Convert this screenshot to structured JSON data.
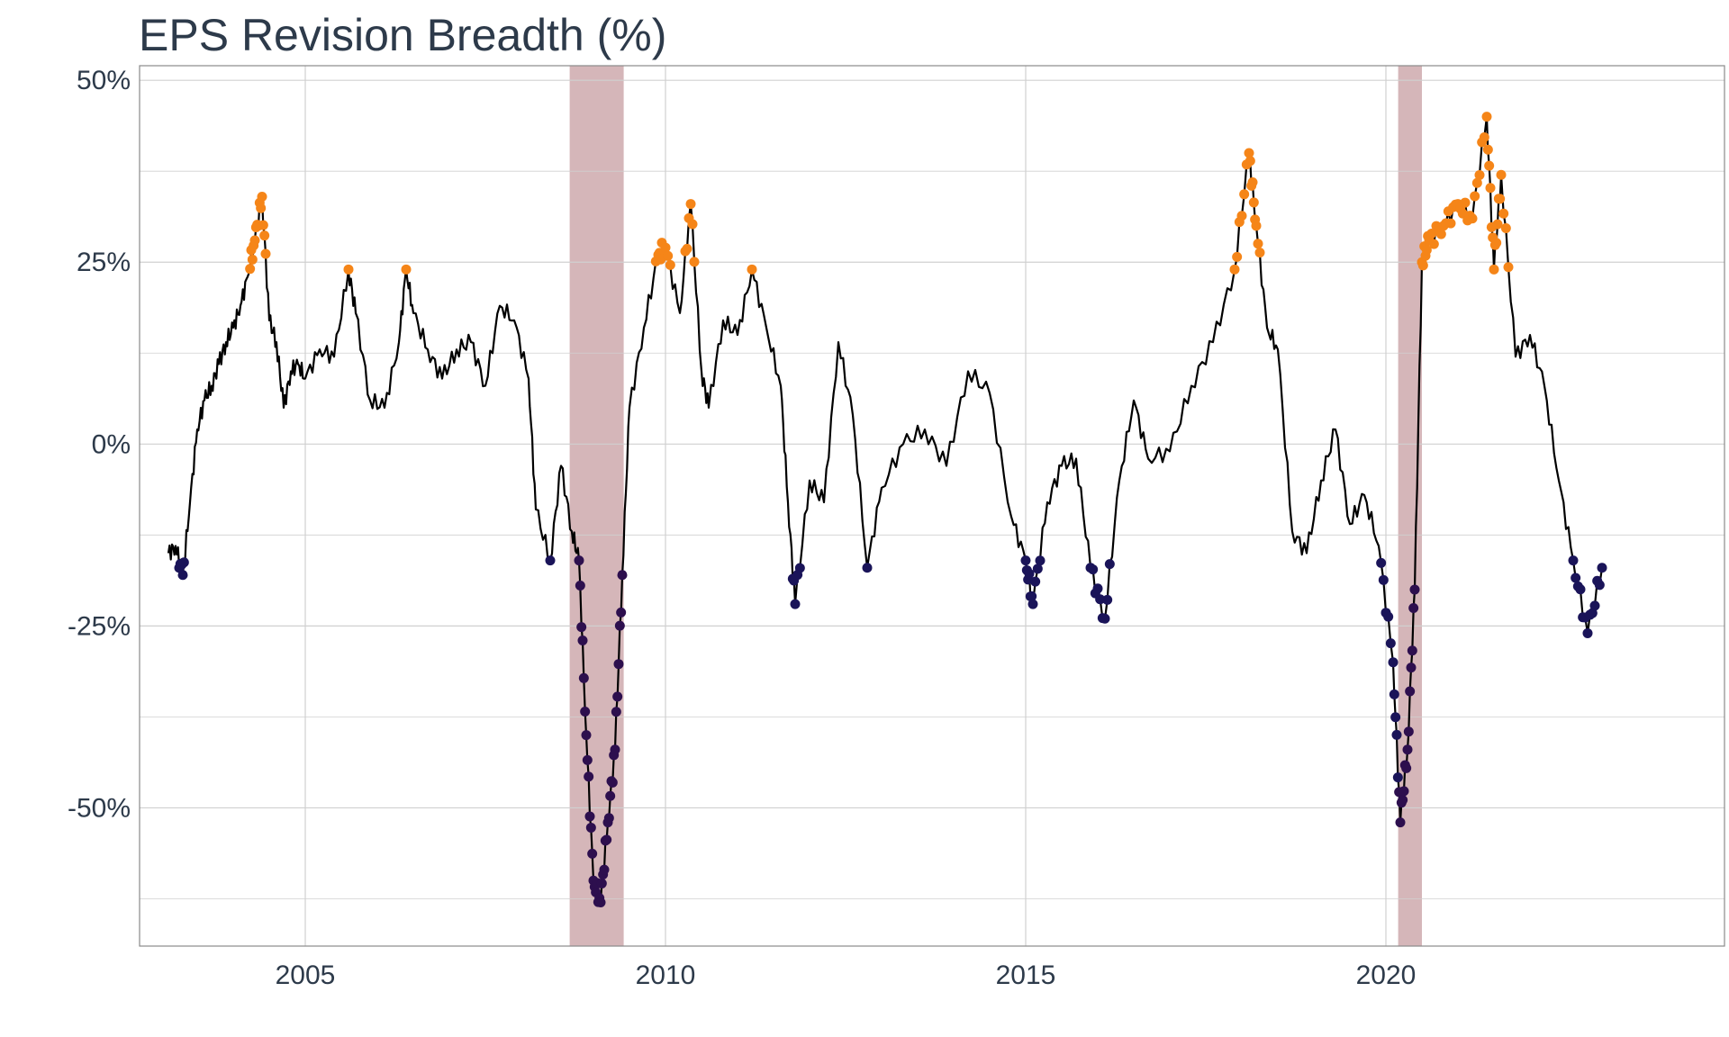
{
  "chart_data": {
    "type": "line",
    "title": "EPS Revision Breadth (%)",
    "xlabel": "",
    "ylabel": "",
    "xlim": [
      2002.7,
      2024.7
    ],
    "ylim": [
      -69,
      52
    ],
    "x_ticks": [
      2005,
      2010,
      2015,
      2020
    ],
    "x_tick_labels": [
      "2005",
      "2010",
      "2015",
      "2020"
    ],
    "y_ticks": [
      50,
      25,
      0,
      -25,
      -50
    ],
    "y_tick_labels": [
      "50%",
      "25%",
      "0%",
      "-25%",
      "-50%"
    ],
    "y_minor_gridlines": [
      37.5,
      12.5,
      -12.5,
      -37.5,
      -62.5
    ],
    "grid": true,
    "recession_shading": [
      {
        "start": 2008.67,
        "end": 2009.42
      },
      {
        "start": 2020.17,
        "end": 2020.5
      }
    ],
    "thresholds": {
      "high": 24,
      "low": -16
    },
    "colors": {
      "line": "#000000",
      "high_points": "#f58518",
      "low_points": "#1a1459",
      "recession_low_points": "#2d0f4e",
      "recession_band": "#b27a80",
      "grid": "#d0d0d0",
      "panel_border": "#8a8a8a"
    },
    "series": [
      {
        "x": [
          2003.1,
          2003.2,
          2003.3,
          2003.4,
          2003.5,
          2003.6,
          2003.7,
          2003.8,
          2003.9,
          2004.0,
          2004.1,
          2004.2,
          2004.3,
          2004.4,
          2004.5,
          2004.6,
          2004.7,
          2004.8,
          2004.9,
          2005.0,
          2005.2,
          2005.4,
          2005.6,
          2005.7,
          2005.9,
          2006.1,
          2006.3,
          2006.4,
          2006.5,
          2006.7,
          2006.9,
          2007.1,
          2007.3,
          2007.5,
          2007.7,
          2007.9,
          2008.1,
          2008.2,
          2008.4,
          2008.55,
          2008.7,
          2008.8,
          2008.9,
          2009.0,
          2009.1,
          2009.2,
          2009.3,
          2009.4,
          2009.5,
          2009.7,
          2009.9,
          2010.0,
          2010.2,
          2010.35,
          2010.5,
          2010.6,
          2010.8,
          2011.0,
          2011.2,
          2011.4,
          2011.6,
          2011.7,
          2011.8,
          2012.0,
          2012.2,
          2012.4,
          2012.6,
          2012.8,
          2013.0,
          2013.3,
          2013.6,
          2013.9,
          2014.2,
          2014.5,
          2014.8,
          2015.0,
          2015.1,
          2015.3,
          2015.5,
          2015.7,
          2015.9,
          2016.1,
          2016.3,
          2016.5,
          2016.7,
          2017.0,
          2017.3,
          2017.6,
          2017.9,
          2018.1,
          2018.2,
          2018.35,
          2018.5,
          2018.7,
          2018.9,
          2019.1,
          2019.3,
          2019.5,
          2019.7,
          2019.9,
          2020.1,
          2020.2,
          2020.3,
          2020.4,
          2020.5,
          2020.6,
          2020.8,
          2021.0,
          2021.2,
          2021.4,
          2021.5,
          2021.6,
          2021.8,
          2022.0,
          2022.2,
          2022.4,
          2022.6,
          2022.8,
          2023.0
        ],
        "y": [
          -15,
          -14,
          -18,
          -8,
          2,
          6,
          8,
          11,
          14,
          16,
          19,
          23,
          28,
          34,
          17,
          14,
          5,
          10,
          11,
          9,
          13,
          12,
          24,
          18,
          6,
          5,
          14,
          24,
          18,
          13,
          9,
          13,
          14,
          8,
          19,
          17,
          9,
          -9,
          -16,
          -3,
          -12,
          -16,
          -40,
          -60,
          -63,
          -52,
          -42,
          -18,
          5,
          16,
          26,
          27,
          18,
          33,
          10,
          5,
          17,
          15,
          24,
          16,
          8,
          -8,
          -22,
          -5,
          -8,
          14,
          4,
          -17,
          -6,
          0,
          2,
          -3,
          10,
          7,
          -10,
          -16,
          -22,
          -8,
          -3,
          -2,
          -17,
          -24,
          -5,
          6,
          -2,
          -1,
          8,
          14,
          24,
          40,
          30,
          16,
          13,
          -12,
          -15,
          -5,
          2,
          -11,
          -7,
          -14,
          -30,
          -52,
          -42,
          -20,
          25,
          28,
          30,
          33,
          31,
          45,
          24,
          37,
          12,
          15,
          8,
          -5,
          -16,
          -26,
          -17
        ]
      }
    ]
  }
}
